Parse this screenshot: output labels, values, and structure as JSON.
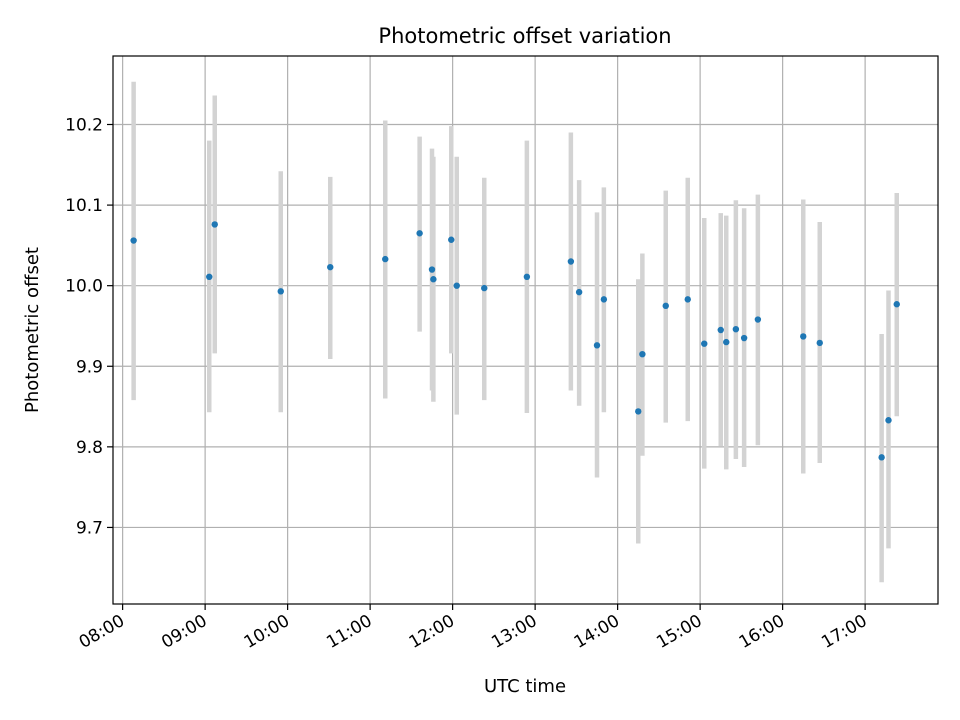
{
  "chart_data": {
    "type": "scatter",
    "title": "Photometric offset variation",
    "xlabel": "UTC time",
    "ylabel": "Photometric offset",
    "xlim": [
      "07:53",
      "17:53"
    ],
    "ylim": [
      9.605,
      10.285
    ],
    "grid": true,
    "x_tick_labels": [
      "08:00",
      "09:00",
      "10:00",
      "11:00",
      "12:00",
      "13:00",
      "14:00",
      "15:00",
      "16:00",
      "17:00"
    ],
    "y_ticks": [
      9.7,
      9.8,
      9.9,
      10.0,
      10.1,
      10.2
    ],
    "y_tick_labels": [
      "9.7",
      "9.8",
      "9.9",
      "10.0",
      "10.1",
      "10.2"
    ],
    "colors": {
      "point": "#1f77b4",
      "errorbar": "#d3d3d3",
      "grid": "#b0b0b0"
    },
    "points": [
      {
        "t": "08:08",
        "y": 10.056,
        "ylow": 9.858,
        "yhigh": 10.253
      },
      {
        "t": "09:03",
        "y": 10.011,
        "ylow": 9.843,
        "yhigh": 10.18
      },
      {
        "t": "09:07",
        "y": 10.076,
        "ylow": 9.916,
        "yhigh": 10.236
      },
      {
        "t": "09:55",
        "y": 9.993,
        "ylow": 9.843,
        "yhigh": 10.142
      },
      {
        "t": "10:31",
        "y": 10.023,
        "ylow": 9.909,
        "yhigh": 10.135
      },
      {
        "t": "11:11",
        "y": 10.033,
        "ylow": 9.86,
        "yhigh": 10.205
      },
      {
        "t": "11:36",
        "y": 10.065,
        "ylow": 9.943,
        "yhigh": 10.185
      },
      {
        "t": "11:45",
        "y": 10.02,
        "ylow": 9.87,
        "yhigh": 10.17
      },
      {
        "t": "11:46",
        "y": 10.008,
        "ylow": 9.856,
        "yhigh": 10.16
      },
      {
        "t": "11:59",
        "y": 10.057,
        "ylow": 9.916,
        "yhigh": 10.198
      },
      {
        "t": "12:03",
        "y": 10.0,
        "ylow": 9.84,
        "yhigh": 10.16
      },
      {
        "t": "12:23",
        "y": 9.997,
        "ylow": 9.858,
        "yhigh": 10.134
      },
      {
        "t": "12:54",
        "y": 10.011,
        "ylow": 9.842,
        "yhigh": 10.18
      },
      {
        "t": "13:26",
        "y": 10.03,
        "ylow": 9.87,
        "yhigh": 10.19
      },
      {
        "t": "13:32",
        "y": 9.992,
        "ylow": 9.851,
        "yhigh": 10.131
      },
      {
        "t": "13:45",
        "y": 9.926,
        "ylow": 9.762,
        "yhigh": 10.091
      },
      {
        "t": "13:50",
        "y": 9.983,
        "ylow": 9.843,
        "yhigh": 10.122
      },
      {
        "t": "14:15",
        "y": 9.844,
        "ylow": 9.68,
        "yhigh": 10.008
      },
      {
        "t": "14:18",
        "y": 9.915,
        "ylow": 9.789,
        "yhigh": 10.04
      },
      {
        "t": "14:35",
        "y": 9.975,
        "ylow": 9.83,
        "yhigh": 10.118
      },
      {
        "t": "14:51",
        "y": 9.983,
        "ylow": 9.832,
        "yhigh": 10.134
      },
      {
        "t": "15:03",
        "y": 9.928,
        "ylow": 9.773,
        "yhigh": 10.084
      },
      {
        "t": "15:15",
        "y": 9.945,
        "ylow": 9.801,
        "yhigh": 10.09
      },
      {
        "t": "15:19",
        "y": 9.93,
        "ylow": 9.772,
        "yhigh": 10.087
      },
      {
        "t": "15:26",
        "y": 9.946,
        "ylow": 9.785,
        "yhigh": 10.106
      },
      {
        "t": "15:32",
        "y": 9.935,
        "ylow": 9.775,
        "yhigh": 10.096
      },
      {
        "t": "15:42",
        "y": 9.958,
        "ylow": 9.802,
        "yhigh": 10.113
      },
      {
        "t": "16:15",
        "y": 9.937,
        "ylow": 9.767,
        "yhigh": 10.107
      },
      {
        "t": "16:27",
        "y": 9.929,
        "ylow": 9.78,
        "yhigh": 10.079
      },
      {
        "t": "17:12",
        "y": 9.787,
        "ylow": 9.632,
        "yhigh": 9.94
      },
      {
        "t": "17:17",
        "y": 9.833,
        "ylow": 9.674,
        "yhigh": 9.994
      },
      {
        "t": "17:23",
        "y": 9.977,
        "ylow": 9.838,
        "yhigh": 10.115
      }
    ]
  }
}
